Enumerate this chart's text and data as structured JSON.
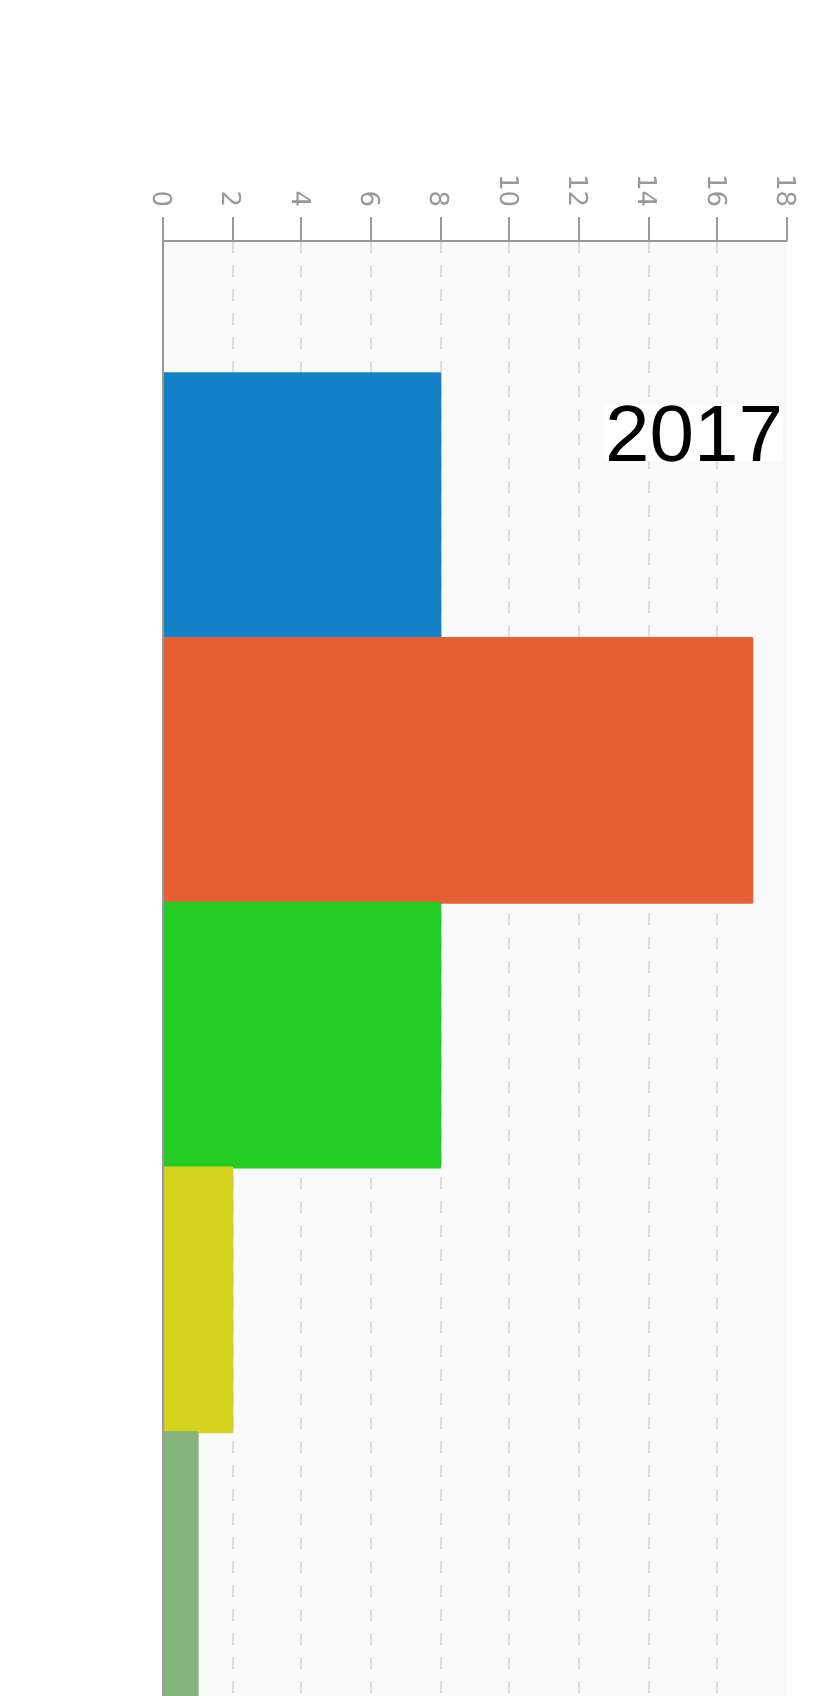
{
  "chart_data": {
    "type": "bar",
    "orientation": "horizontal",
    "categories": [
      null,
      null,
      null,
      null,
      null
    ],
    "values": [
      8,
      17,
      8,
      2,
      1
    ],
    "colors": [
      "#1381c8",
      "#e66033",
      "#22cc22",
      "#d4d21c",
      "#85b47f"
    ],
    "xlim": [
      0,
      18
    ],
    "xticks": [
      0,
      2,
      4,
      6,
      8,
      10,
      12,
      14,
      16,
      18
    ],
    "tick_labels": "x",
    "grid": "x",
    "annotations": [
      "2017"
    ]
  }
}
